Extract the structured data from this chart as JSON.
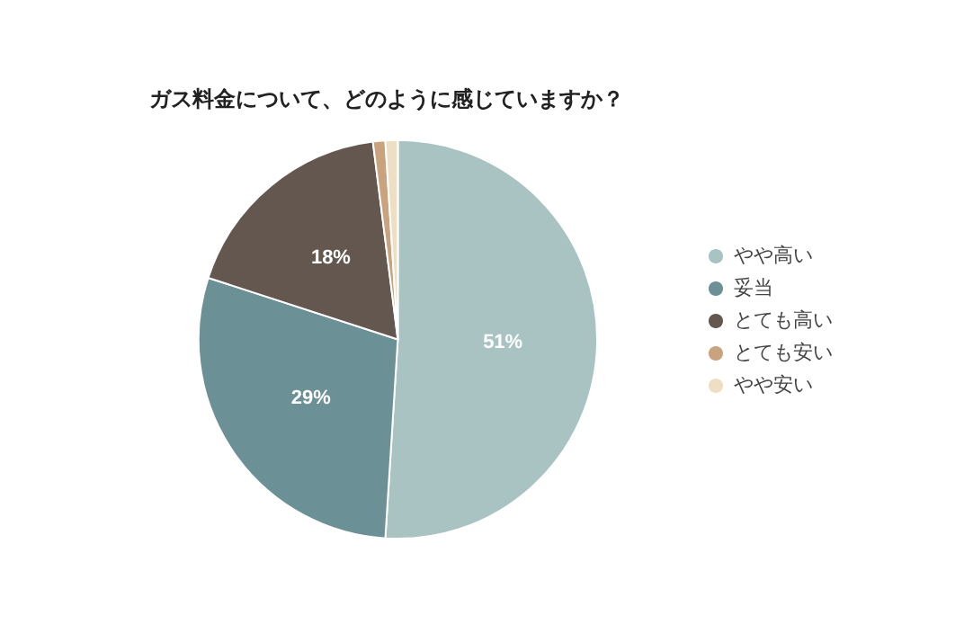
{
  "chart_data": {
    "type": "pie",
    "title": "ガス料金について、どのように感じていますか？",
    "categories": [
      "やや高い",
      "妥当",
      "とても高い",
      "とても安い",
      "やや安い"
    ],
    "values": [
      51,
      29,
      18,
      1,
      1
    ],
    "colors": [
      "#a9c3c3",
      "#6b9096",
      "#63574f",
      "#c9a27e",
      "#eedfc4"
    ],
    "value_labels": [
      "51%",
      "29%",
      "18%",
      null,
      null
    ],
    "legend": "right"
  }
}
